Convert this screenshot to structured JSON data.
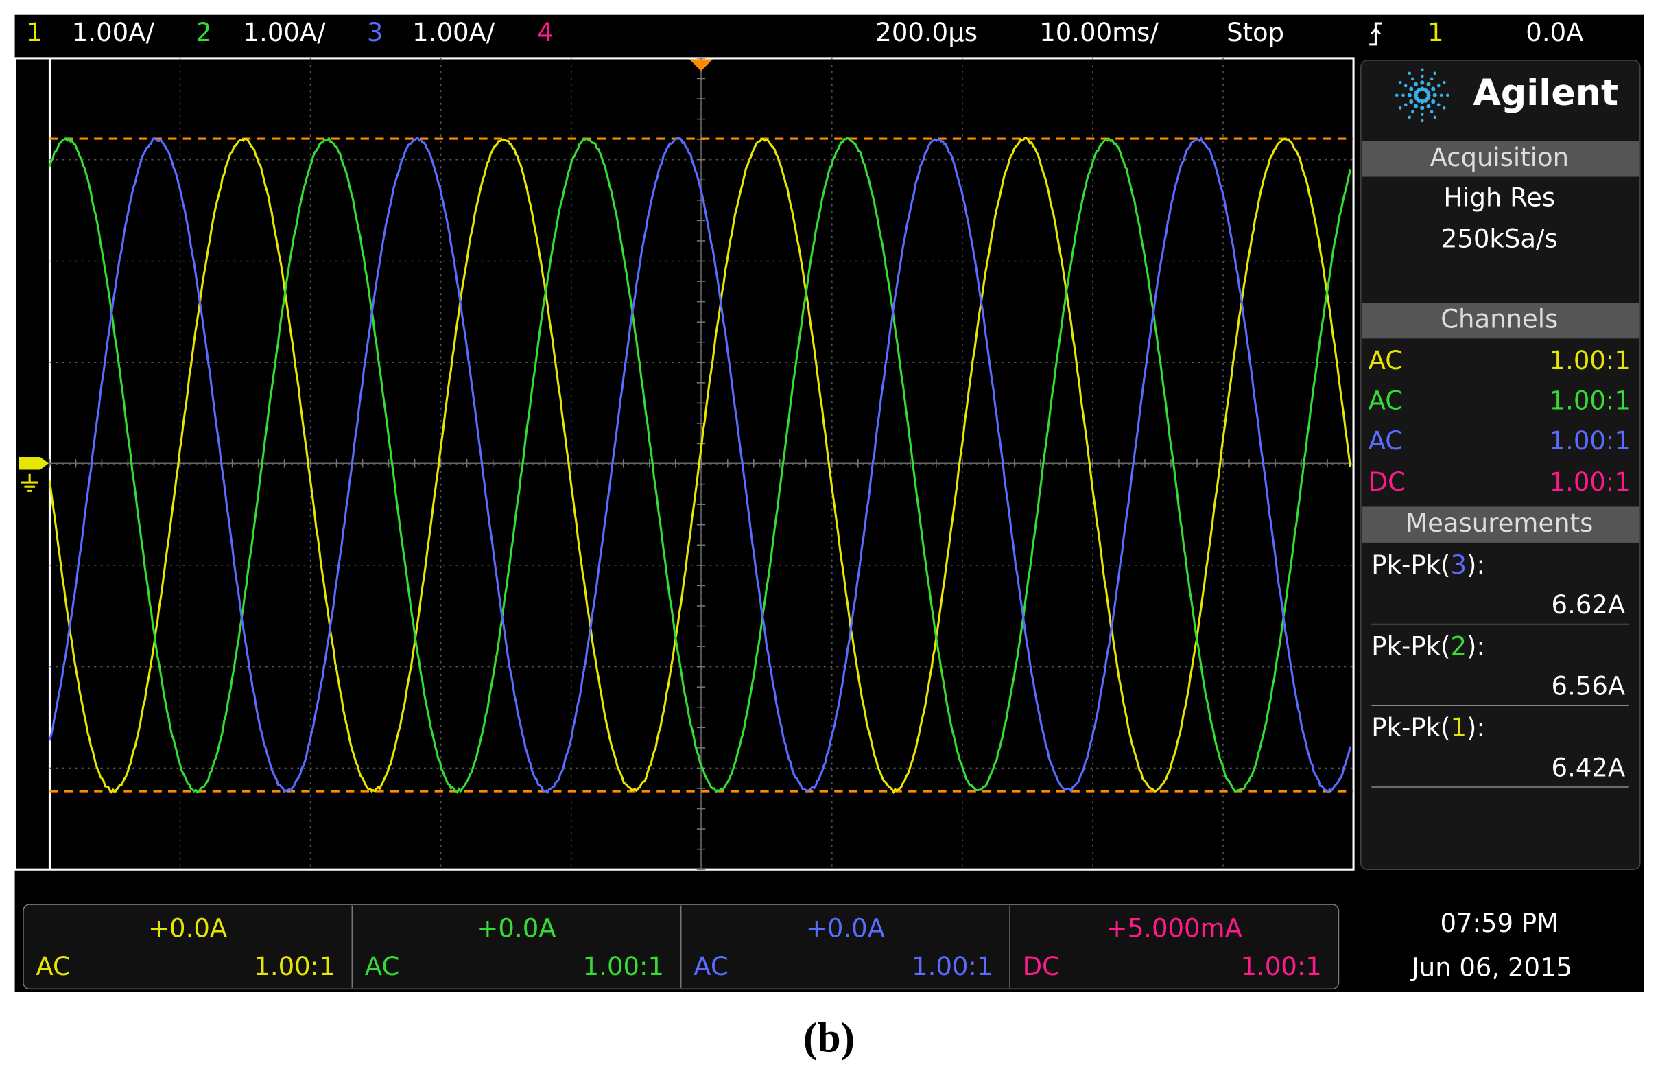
{
  "top_bar": {
    "channels": [
      {
        "number": "1",
        "scale": "1.00A/"
      },
      {
        "number": "2",
        "scale": "1.00A/"
      },
      {
        "number": "3",
        "scale": "1.00A/"
      },
      {
        "number": "4"
      }
    ],
    "delay": "200.0µs",
    "timebase": "10.00ms/",
    "run_state": "Stop",
    "trigger_source": "1",
    "trigger_level": "0.0A"
  },
  "sidebar": {
    "brand": "Agilent",
    "acquisition": {
      "title": "Acquisition",
      "mode": "High Res",
      "rate": "250kSa/s"
    },
    "channels": {
      "title": "Channels",
      "rows": [
        {
          "coupling": "AC",
          "ratio": "1.00:1"
        },
        {
          "coupling": "AC",
          "ratio": "1.00:1"
        },
        {
          "coupling": "AC",
          "ratio": "1.00:1"
        },
        {
          "coupling": "DC",
          "ratio": "1.00:1"
        }
      ]
    },
    "measurements": {
      "title": "Measurements",
      "items": [
        {
          "label": "Pk-Pk(",
          "channel": "3",
          "close": "):",
          "value": "6.62A"
        },
        {
          "label": "Pk-Pk(",
          "channel": "2",
          "close": "):",
          "value": "6.56A"
        },
        {
          "label": "Pk-Pk(",
          "channel": "1",
          "close": "):",
          "value": "6.42A"
        }
      ]
    }
  },
  "bottom_bar": {
    "channels": [
      {
        "offset": "+0.0A",
        "coupling": "AC",
        "ratio": "1.00:1"
      },
      {
        "offset": "+0.0A",
        "coupling": "AC",
        "ratio": "1.00:1"
      },
      {
        "offset": "+0.0A",
        "coupling": "AC",
        "ratio": "1.00:1"
      },
      {
        "offset": "+5.000mA",
        "coupling": "DC",
        "ratio": "1.00:1"
      }
    ],
    "time": "07:59 PM",
    "date": "Jun 06, 2015"
  },
  "caption": "(b)"
}
